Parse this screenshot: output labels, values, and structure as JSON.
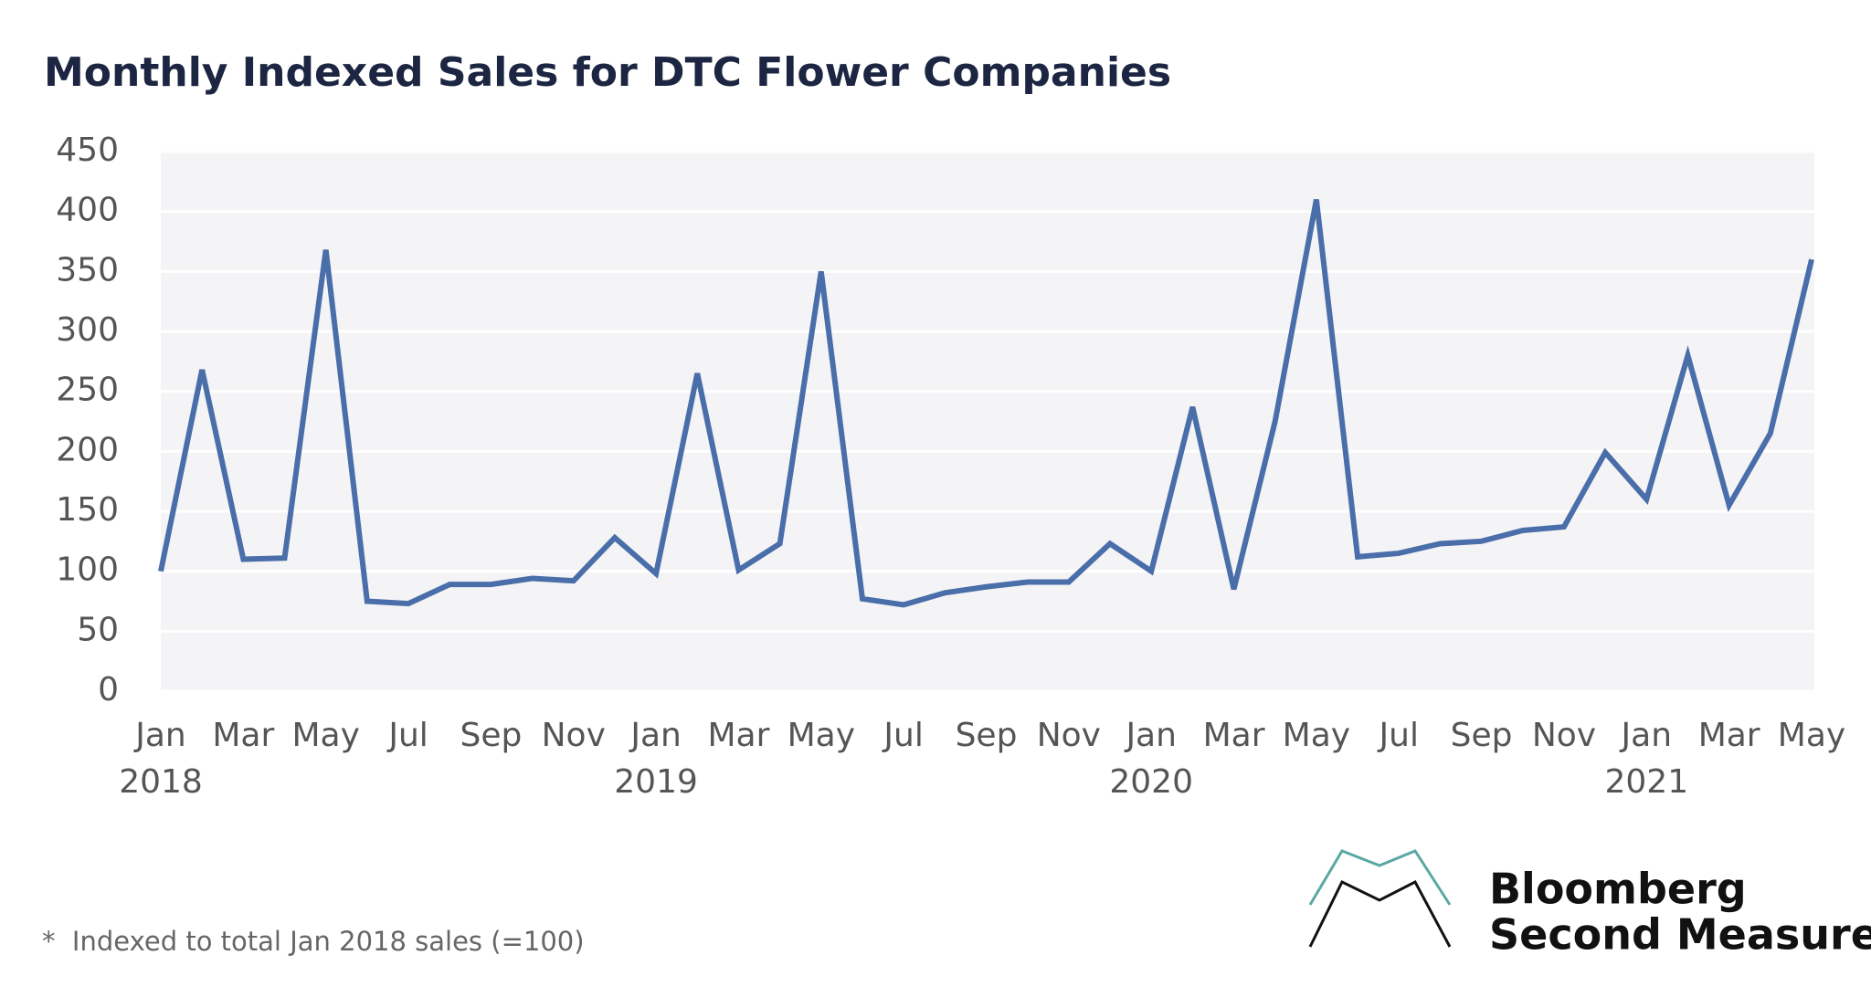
{
  "chart_data": {
    "type": "line",
    "title": "Monthly Indexed Sales for DTC Flower Companies",
    "categories": [
      "Jan",
      null,
      "Mar",
      null,
      "May",
      null,
      "Jul",
      null,
      "Sep",
      null,
      "Nov",
      null,
      "Jan",
      null,
      "Mar",
      null,
      "May",
      null,
      "Jul",
      null,
      "Sep",
      null,
      "Nov",
      null,
      "Jan",
      null,
      "Mar",
      null,
      "May",
      null,
      "Jul",
      null,
      "Sep",
      null,
      "Nov",
      null,
      "Jan",
      null,
      "Mar",
      null,
      "May"
    ],
    "year_labels": [
      "2018",
      "2019",
      "2020",
      "2021"
    ],
    "series": [
      {
        "color": "#4a6ea9",
        "values": [
          100,
          268,
          110,
          111,
          368,
          75,
          73,
          89,
          89,
          94,
          92,
          128,
          98,
          265,
          101,
          123,
          350,
          77,
          72,
          82,
          87,
          91,
          91,
          123,
          100,
          237,
          85,
          225,
          410,
          112,
          115,
          123,
          125,
          134,
          137,
          199,
          160,
          280,
          155,
          215,
          360
        ]
      }
    ],
    "ylim": [
      0,
      450
    ],
    "yticks": [
      0,
      50,
      100,
      150,
      200,
      250,
      300,
      350,
      400,
      450
    ],
    "grid": true,
    "footnote": "*  Indexed to total Jan 2018 sales (=100)"
  },
  "logo": {
    "line1": "Bloomberg",
    "line2": "Second Measure"
  }
}
